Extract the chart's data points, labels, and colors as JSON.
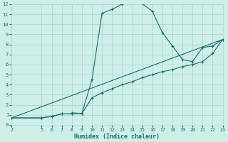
{
  "xlabel": "Humidex (Indice chaleur)",
  "bg_color": "#ceeee8",
  "grid_color": "#aed8d2",
  "line_color": "#1a6b6b",
  "xlim": [
    2,
    23
  ],
  "ylim": [
    0,
    12
  ],
  "xticks": [
    2,
    5,
    6,
    7,
    8,
    9,
    10,
    11,
    12,
    13,
    14,
    15,
    16,
    17,
    18,
    19,
    20,
    21,
    22,
    23
  ],
  "yticks": [
    0,
    1,
    2,
    3,
    4,
    5,
    6,
    7,
    8,
    9,
    10,
    11,
    12
  ],
  "line1_x": [
    2,
    5,
    6,
    7,
    8,
    8,
    9,
    10,
    11,
    12,
    13,
    14,
    15,
    16,
    17,
    18,
    19,
    20,
    21,
    22,
    23
  ],
  "line1_y": [
    0.7,
    0.7,
    0.85,
    1.1,
    1.1,
    1.2,
    1.15,
    4.5,
    11.1,
    11.5,
    12.0,
    12.25,
    12.05,
    11.3,
    9.2,
    7.85,
    6.5,
    6.3,
    7.7,
    7.85,
    8.5
  ],
  "line2_x": [
    2,
    23
  ],
  "line2_y": [
    0.7,
    8.5
  ],
  "line3_x": [
    2,
    5,
    6,
    7,
    8,
    9,
    10,
    11,
    12,
    13,
    14,
    15,
    16,
    17,
    18,
    19,
    20,
    21,
    22,
    23
  ],
  "line3_y": [
    0.7,
    0.7,
    0.85,
    1.1,
    1.1,
    1.15,
    2.7,
    3.2,
    3.6,
    4.0,
    4.3,
    4.7,
    5.0,
    5.3,
    5.5,
    5.8,
    6.0,
    6.3,
    7.1,
    8.5
  ]
}
